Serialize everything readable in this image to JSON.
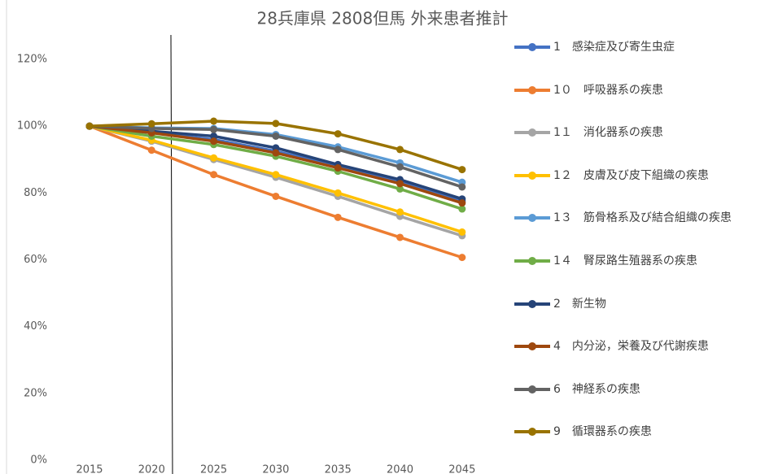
{
  "chart_data": {
    "type": "line",
    "title": "28兵庫県 2808但馬 外来患者推計",
    "categories": [
      "2015",
      "2020",
      "2025",
      "2030",
      "2035",
      "2040",
      "2045"
    ],
    "ylim": [
      0,
      120
    ],
    "yticks": [
      {
        "value": 0,
        "label": "0%"
      },
      {
        "value": 20,
        "label": "20%"
      },
      {
        "value": 40,
        "label": "40%"
      },
      {
        "value": 60,
        "label": "60%"
      },
      {
        "value": 80,
        "label": "80%"
      },
      {
        "value": 100,
        "label": "100%"
      },
      {
        "value": 120,
        "label": "120%"
      }
    ],
    "grid": false,
    "legend": "right",
    "series": [
      {
        "name": "1　感染症及び寄生虫症",
        "color": "#4472c4",
        "values": [
          100,
          98,
          96,
          92.5,
          88,
          83.5,
          77.5
        ]
      },
      {
        "name": "1０　呼吸器系の疾患",
        "color": "#ed7d31",
        "values": [
          100,
          92.8,
          85.5,
          79,
          72.7,
          66.7,
          60.7
        ]
      },
      {
        "name": "1１　消化器系の疾患",
        "color": "#a5a5a5",
        "values": [
          100,
          95.5,
          90,
          84.7,
          79,
          73,
          67.2
        ]
      },
      {
        "name": "1２　皮膚及び皮下組織の疾患",
        "color": "#ffc000",
        "values": [
          100,
          95.8,
          90.5,
          85.5,
          80,
          74.3,
          68.3
        ]
      },
      {
        "name": "1３　筋骨格系及び結合組織の疾患",
        "color": "#5b9bd5",
        "values": [
          100,
          99.5,
          99.3,
          97.5,
          93.8,
          89,
          83.2
        ]
      },
      {
        "name": "1４　腎尿路生殖器系の疾患",
        "color": "#70ad47",
        "values": [
          100,
          97,
          94.5,
          91,
          86.5,
          81.2,
          75.2
        ]
      },
      {
        "name": "2　新生物",
        "color": "#264478",
        "values": [
          100,
          98.5,
          97,
          93.5,
          88.5,
          84,
          78.2
        ]
      },
      {
        "name": "4　内分泌，栄養及び代謝疾患",
        "color": "#9e480e",
        "values": [
          100,
          98,
          95.5,
          92,
          87.5,
          82.8,
          77
        ]
      },
      {
        "name": "6　神経系の疾患",
        "color": "#636363",
        "values": [
          100,
          99.3,
          99,
          97,
          93,
          87.8,
          81.8
        ]
      },
      {
        "name": "9　循環器系の疾患",
        "color": "#997300",
        "values": [
          100,
          100.7,
          101.5,
          100.8,
          97.7,
          93,
          87
        ]
      }
    ]
  }
}
